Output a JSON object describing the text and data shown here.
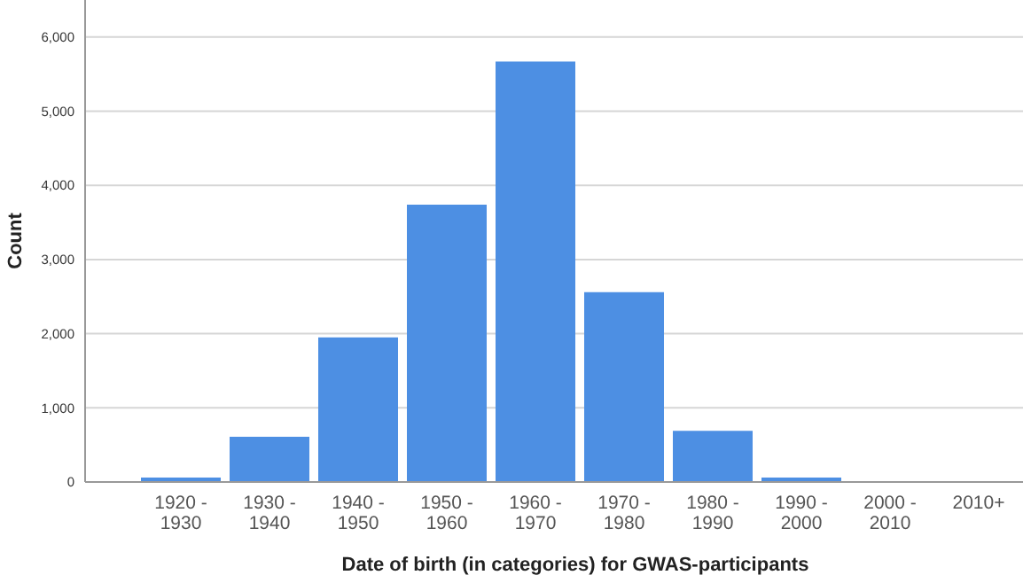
{
  "chart_data": {
    "type": "bar",
    "xlabel": "Date of birth (in categories) for GWAS-participants",
    "ylabel": "Count",
    "categories": [
      "1920 - 1930",
      "1930 - 1940",
      "1940 - 1950",
      "1950 - 1960",
      "1960 - 1970",
      "1970 - 1980",
      "1980 - 1990",
      "1990 - 2000",
      "2000 - 2010",
      "2010+"
    ],
    "values": [
      60,
      610,
      1950,
      3740,
      5670,
      2560,
      690,
      60,
      0,
      0
    ],
    "color": "#4d8fe3",
    "ylim": [
      0,
      6500
    ],
    "yticks": [
      0,
      {
        "value": 1000,
        "label": "1,000"
      },
      {
        "value": 2000,
        "label": "2,000"
      },
      {
        "value": 3000,
        "label": "3,000"
      },
      {
        "value": 4000,
        "label": "4,000"
      },
      {
        "value": 5000,
        "label": "5,000"
      },
      {
        "value": 6000,
        "label": "6,000"
      }
    ],
    "grid": "y"
  }
}
